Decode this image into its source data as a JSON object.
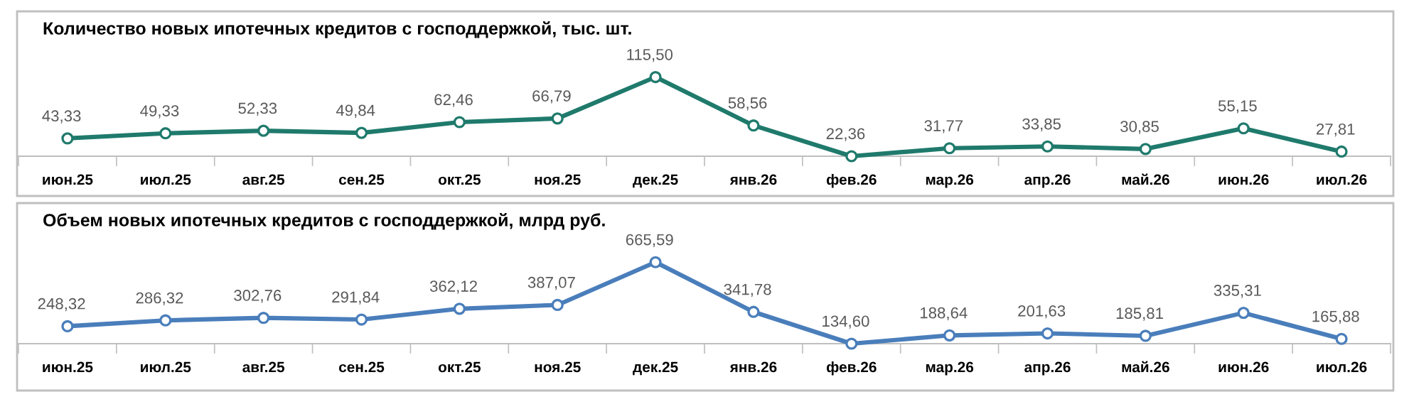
{
  "chart_data": [
    {
      "type": "line",
      "title": "Количество новых ипотечных кредитов с господдержкой, тыс. шт.",
      "categories": [
        "июн.25",
        "июл.25",
        "авг.25",
        "сен.25",
        "окт.25",
        "ноя.25",
        "дек.25",
        "янв.26",
        "фев.26",
        "мар.26",
        "апр.26",
        "май.26",
        "июн.26",
        "июл.26"
      ],
      "tick_labels": "x",
      "grid": false,
      "marker": "circle",
      "line_style": "solid",
      "series": [
        {
          "color": "#1f7a6c",
          "values": [
            43.33,
            49.33,
            52.33,
            49.84,
            62.46,
            66.79,
            115.5,
            58.56,
            22.36,
            31.77,
            33.85,
            30.85,
            55.15,
            27.81
          ],
          "value_labels": [
            "43,33",
            "49,33",
            "52,33",
            "49,84",
            "62,46",
            "66,79",
            "115,50",
            "58,56",
            "22,36",
            "31,77",
            "33,85",
            "30,85",
            "55,15",
            "27,81"
          ]
        }
      ]
    },
    {
      "type": "line",
      "title": "Объем новых ипотечных кредитов с господдержкой, млрд руб.",
      "categories": [
        "июн.25",
        "июл.25",
        "авг.25",
        "сен.25",
        "окт.25",
        "ноя.25",
        "дек.25",
        "янв.26",
        "фев.26",
        "мар.26",
        "апр.26",
        "май.26",
        "июн.26",
        "июл.26"
      ],
      "tick_labels": "x",
      "grid": false,
      "marker": "circle",
      "line_style": "solid",
      "series": [
        {
          "color": "#4a7ebb",
          "values": [
            248.32,
            286.32,
            302.76,
            291.84,
            362.12,
            387.07,
            665.59,
            341.78,
            134.6,
            188.64,
            201.63,
            185.81,
            335.31,
            165.88
          ],
          "value_labels": [
            "248,32",
            "286,32",
            "302,76",
            "291,84",
            "362,12",
            "387,07",
            "665,59",
            "341,78",
            "134,60",
            "188,64",
            "201,63",
            "185,81",
            "335,31",
            "165,88"
          ]
        }
      ]
    }
  ]
}
